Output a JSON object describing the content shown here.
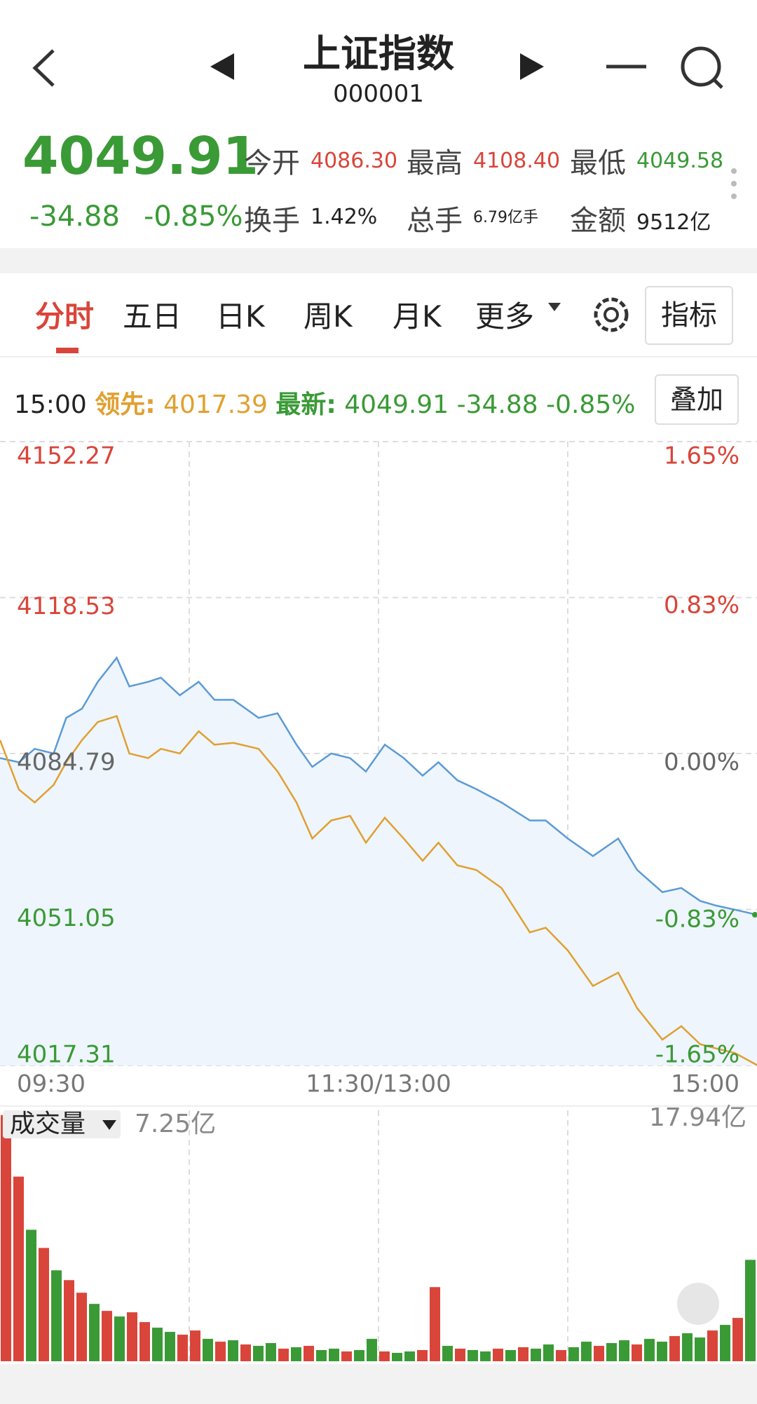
{
  "header": {
    "title": "上证指数",
    "code": "000001"
  },
  "quote": {
    "price": "4049.91",
    "change": "-34.88",
    "change_pct": "-0.85%",
    "stats": [
      {
        "label": "今开",
        "value": "4086.30"
      },
      {
        "label": "最高",
        "value": "4108.40"
      },
      {
        "label": "最低",
        "value": "4049.58"
      },
      {
        "label": "换手",
        "value": "1.42%"
      },
      {
        "label": "总手",
        "value": "6.79亿手"
      },
      {
        "label": "金额",
        "value": "9512亿"
      }
    ]
  },
  "tabs": [
    "分时",
    "五日",
    "日K",
    "周K",
    "月K",
    "更多"
  ],
  "indicator_button": "指标",
  "legend": {
    "time": "15:00",
    "lead_label": "领先:",
    "lead_value": "4017.39",
    "latest_label": "最新:",
    "latest_value": "4049.91",
    "latest_change": "-34.88",
    "latest_pct": "-0.85%",
    "overlay_button": "叠加"
  },
  "chart_data": [
    {
      "type": "line",
      "x": [
        0,
        6,
        11,
        17,
        21,
        26,
        31,
        37,
        41,
        47,
        51,
        57,
        63,
        68,
        74,
        82,
        88,
        94,
        99,
        105,
        111,
        116,
        122,
        128,
        134,
        139,
        145,
        151,
        159,
        168,
        173,
        180,
        188,
        196,
        202,
        210,
        216,
        222,
        227,
        233,
        240
      ],
      "series": [
        {
          "color": "#5b9bd5",
          "values": [
            4083.8,
            4082.9,
            4085.8,
            4084.8,
            4092.5,
            4094.5,
            4100.3,
            4105.5,
            4099.3,
            4100.3,
            4101.2,
            4097.4,
            4100.3,
            4096.4,
            4096.4,
            4092.5,
            4093.5,
            4086.7,
            4081.9,
            4084.8,
            4083.8,
            4080.9,
            4086.7,
            4083.8,
            4080.0,
            4082.9,
            4079.0,
            4077.1,
            4074.2,
            4070.3,
            4070.3,
            4066.4,
            4062.6,
            4066.4,
            4059.6,
            4054.8,
            4055.7,
            4052.9,
            4051.9,
            4051.0,
            4049.91
          ]
        },
        {
          "color": "#e0a030",
          "values": [
            4087.7,
            4077.0,
            4074.2,
            4078.0,
            4082.9,
            4087.7,
            4091.6,
            4092.9,
            4084.8,
            4083.8,
            4085.8,
            4084.8,
            4089.6,
            4086.7,
            4087.1,
            4085.8,
            4080.9,
            4074.2,
            4066.4,
            4070.3,
            4071.3,
            4065.5,
            4070.9,
            4066.4,
            4061.6,
            4065.5,
            4060.6,
            4059.6,
            4055.7,
            4046.1,
            4047.1,
            4042.2,
            4034.5,
            4037.4,
            4029.7,
            4022.9,
            4025.8,
            4021.9,
            4021.0,
            4020.0,
            4017.39
          ]
        }
      ],
      "ylim": [
        4017.31,
        4152.27
      ],
      "yticks": [
        4152.27,
        4118.53,
        4084.79,
        4051.05,
        4017.31
      ],
      "y2lim": [
        -1.65,
        1.65
      ],
      "y2ticks": [
        {
          "value": 1.65,
          "label": "1.65%"
        },
        {
          "value": 0.83,
          "label": "0.83%"
        },
        {
          "value": 0,
          "label": "0.00%"
        },
        {
          "value": -0.83,
          "label": "-0.83%"
        },
        {
          "value": -1.65,
          "label": "-1.65%"
        }
      ],
      "xlim": [
        0,
        240
      ],
      "xticks": [
        {
          "value": 0,
          "label": "09:30"
        },
        {
          "value": 120,
          "label": "11:30/13:00"
        },
        {
          "value": 240,
          "label": "15:00"
        }
      ],
      "grid": true
    },
    {
      "type": "bar",
      "title": "成交量",
      "subtitle": "7.25亿",
      "values": [
        17.6,
        13.2,
        9.4,
        8.1,
        6.5,
        5.8,
        4.9,
        4.1,
        3.6,
        3.2,
        3.5,
        2.8,
        2.4,
        2.1,
        1.9,
        2.2,
        1.6,
        1.4,
        1.5,
        1.2,
        1.1,
        1.3,
        0.9,
        1.0,
        1.1,
        0.8,
        0.9,
        0.7,
        0.8,
        1.6,
        0.7,
        0.6,
        0.7,
        0.8,
        5.3,
        1.1,
        0.9,
        0.8,
        0.7,
        0.9,
        0.8,
        1.0,
        0.9,
        1.2,
        0.8,
        1.0,
        1.4,
        1.1,
        1.3,
        1.5,
        1.2,
        1.6,
        1.4,
        1.8,
        2.0,
        1.7,
        2.2,
        2.6,
        3.1,
        7.25
      ],
      "colors": [
        "#d9453a",
        "#d9453a",
        "#3a9a36",
        "#d9453a",
        "#3a9a36",
        "#d9453a",
        "#d9453a",
        "#3a9a36",
        "#d9453a",
        "#3a9a36",
        "#d9453a",
        "#d9453a",
        "#3a9a36",
        "#3a9a36",
        "#d9453a",
        "#d9453a",
        "#3a9a36",
        "#d9453a",
        "#3a9a36",
        "#d9453a",
        "#3a9a36",
        "#3a9a36",
        "#d9453a",
        "#3a9a36",
        "#d9453a",
        "#3a9a36",
        "#3a9a36",
        "#d9453a",
        "#3a9a36",
        "#3a9a36",
        "#d9453a",
        "#3a9a36",
        "#3a9a36",
        "#d9453a",
        "#d9453a",
        "#3a9a36",
        "#d9453a",
        "#3a9a36",
        "#3a9a36",
        "#d9453a",
        "#3a9a36",
        "#d9453a",
        "#3a9a36",
        "#3a9a36",
        "#d9453a",
        "#3a9a36",
        "#3a9a36",
        "#d9453a",
        "#3a9a36",
        "#3a9a36",
        "#d9453a",
        "#3a9a36",
        "#3a9a36",
        "#d9453a",
        "#3a9a36",
        "#3a9a36",
        "#d9453a",
        "#3a9a36",
        "#d9453a",
        "#3a9a36"
      ],
      "ylim": [
        0,
        17.94
      ],
      "yticks": [
        {
          "value": 17.94,
          "label": "17.94亿"
        }
      ]
    }
  ]
}
